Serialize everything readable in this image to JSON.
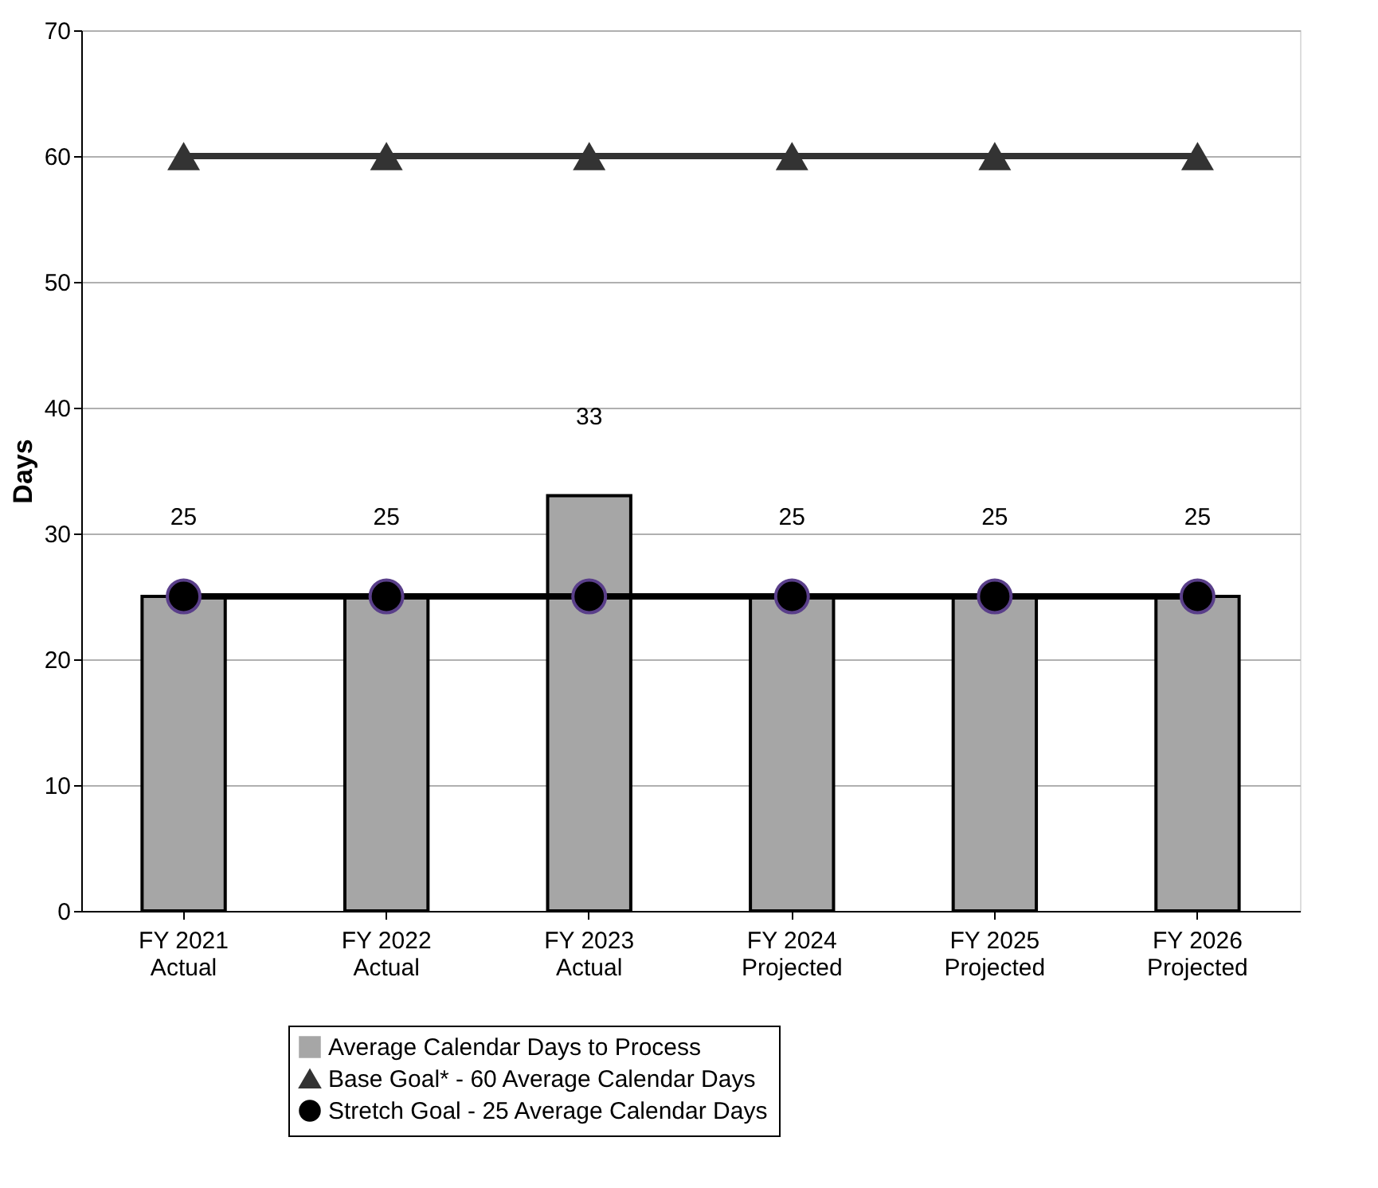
{
  "chart_data": {
    "type": "bar",
    "ylabel": "Days",
    "categories": [
      "FY 2021\nActual",
      "FY 2022\nActual",
      "FY 2023\nActual",
      "FY 2024\nProjected",
      "FY 2025\nProjected",
      "FY 2026\nProjected"
    ],
    "series": [
      {
        "name": "Average Calendar Days to Process",
        "color": "#a6a6a6",
        "values": [
          25,
          25,
          33,
          25,
          25,
          25
        ],
        "data_labels": true
      },
      {
        "name": "Base Goal* - 60 Average Calendar Days",
        "type": "line",
        "color": "#333333",
        "marker": "triangle",
        "values": [
          60,
          60,
          60,
          60,
          60,
          60
        ]
      },
      {
        "name": "Stretch Goal - 25 Average Calendar Days",
        "type": "line",
        "color": "#000000",
        "marker": "circle",
        "values": [
          25,
          25,
          25,
          25,
          25,
          25
        ]
      }
    ],
    "ylim": [
      0,
      70
    ],
    "yticks": [
      0,
      10,
      20,
      30,
      40,
      50,
      60,
      70
    ],
    "grid": "y",
    "legend": "bottom"
  }
}
